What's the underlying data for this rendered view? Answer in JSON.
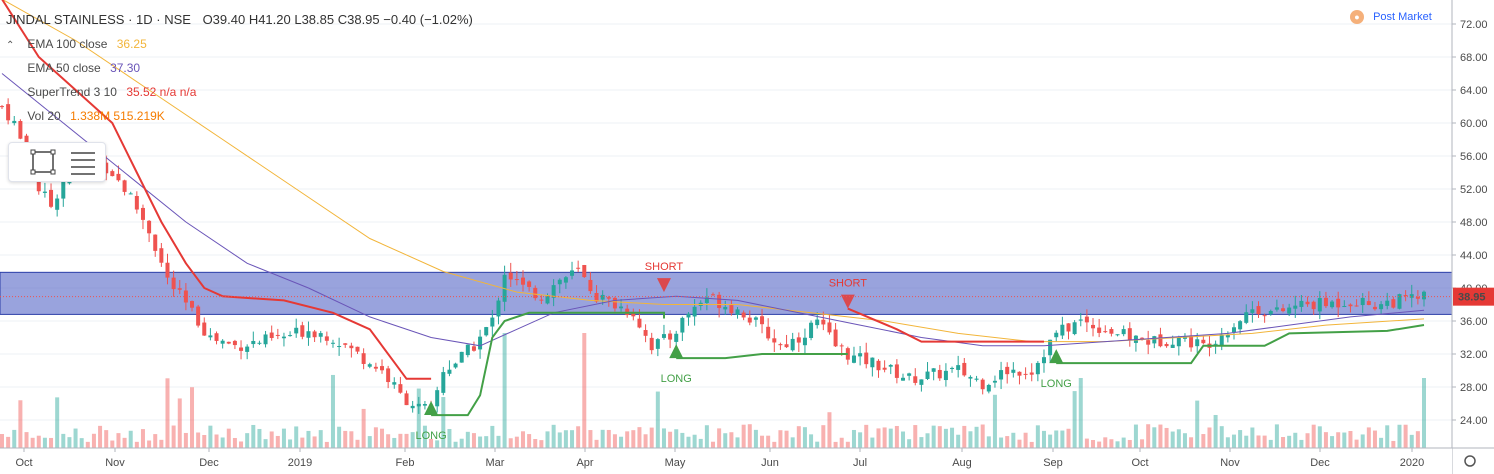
{
  "header": {
    "title": "JINDAL STAINLESS · 1D · NSE",
    "ohlc": "O39.40  H41.20  L38.85  C38.95  −0.40 (−1.02%)",
    "post_market": "Post Market"
  },
  "legend": {
    "ema100": {
      "label": "EMA 100 close",
      "value": "36.25",
      "color": "#f2b53a"
    },
    "ema50": {
      "label": "EMA 50 close",
      "value": "37.30",
      "color": "#6a55b8"
    },
    "supertrend": {
      "label": "SuperTrend 3 10",
      "value": "35.52  n/a  n/a",
      "color": "#e53935"
    },
    "volume": {
      "label": "Vol 20",
      "value": "1.338M  515.219K",
      "color": "#f57c00"
    }
  },
  "price_label": {
    "value": "38.95",
    "color": "#e53935"
  },
  "colors": {
    "up": "#26a69a",
    "down": "#ef5350",
    "zone": "#5a6bc8",
    "st_long": "#43a047",
    "st_short": "#e53935"
  },
  "chart_data": {
    "type": "candlestick",
    "y_ticks": [
      "72.00",
      "68.00",
      "64.00",
      "60.00",
      "56.00",
      "52.00",
      "48.00",
      "44.00",
      "40.00",
      "36.00",
      "32.00",
      "28.00",
      "24.00"
    ],
    "x_ticks": [
      "Oct",
      "Nov",
      "Dec",
      "2019",
      "Feb",
      "Mar",
      "Apr",
      "May",
      "Jun",
      "Jul",
      "Aug",
      "Sep",
      "Oct",
      "Nov",
      "Dec",
      "2020"
    ],
    "ylim": [
      20.9,
      74.4
    ],
    "zone": {
      "low": 36.8,
      "high": 41.9
    },
    "close_path": [
      [
        0,
        62
      ],
      [
        2,
        60
      ],
      [
        4,
        56
      ],
      [
        6,
        52
      ],
      [
        8,
        50
      ],
      [
        10,
        53
      ],
      [
        13,
        57
      ],
      [
        15,
        56
      ],
      [
        18,
        54
      ],
      [
        21,
        51
      ],
      [
        24,
        47
      ],
      [
        27,
        41
      ],
      [
        30,
        38
      ],
      [
        34,
        34
      ],
      [
        38,
        33
      ],
      [
        42,
        33.5
      ],
      [
        46,
        34
      ],
      [
        50,
        35
      ],
      [
        54,
        34
      ],
      [
        58,
        32
      ],
      [
        62,
        30
      ],
      [
        65,
        27
      ],
      [
        68,
        25.5
      ],
      [
        70,
        25
      ],
      [
        72,
        30
      ],
      [
        74,
        31
      ],
      [
        77,
        33
      ],
      [
        80,
        36
      ],
      [
        82,
        42
      ],
      [
        85,
        40
      ],
      [
        88,
        39
      ],
      [
        91,
        41
      ],
      [
        94,
        42
      ],
      [
        97,
        39
      ],
      [
        100,
        38
      ],
      [
        103,
        37
      ],
      [
        106,
        33
      ],
      [
        109,
        34
      ],
      [
        112,
        37
      ],
      [
        115,
        39
      ],
      [
        118,
        38
      ],
      [
        121,
        37
      ],
      [
        124,
        35
      ],
      [
        127,
        33
      ],
      [
        130,
        34
      ],
      [
        133,
        36
      ],
      [
        136,
        33
      ],
      [
        139,
        31.5
      ],
      [
        142,
        31
      ],
      [
        145,
        30
      ],
      [
        148,
        29
      ],
      [
        152,
        29.5
      ],
      [
        156,
        30
      ],
      [
        160,
        28.5
      ],
      [
        164,
        30
      ],
      [
        168,
        30
      ],
      [
        172,
        34.5
      ],
      [
        176,
        36
      ],
      [
        180,
        35
      ],
      [
        184,
        34
      ],
      [
        188,
        33.5
      ],
      [
        192,
        34
      ],
      [
        196,
        33
      ],
      [
        200,
        35
      ],
      [
        204,
        37.5
      ],
      [
        208,
        37
      ],
      [
        212,
        38
      ],
      [
        216,
        38
      ],
      [
        220,
        38.5
      ],
      [
        224,
        38
      ],
      [
        228,
        38.5
      ],
      [
        232,
        38.95
      ]
    ],
    "ema50": [
      [
        0,
        66
      ],
      [
        10,
        60
      ],
      [
        20,
        54
      ],
      [
        30,
        48
      ],
      [
        40,
        43
      ],
      [
        50,
        40
      ],
      [
        60,
        36.5
      ],
      [
        70,
        34
      ],
      [
        78,
        33
      ],
      [
        84,
        35
      ],
      [
        90,
        37
      ],
      [
        100,
        38.5
      ],
      [
        110,
        39
      ],
      [
        120,
        38.5
      ],
      [
        130,
        37
      ],
      [
        140,
        35.5
      ],
      [
        150,
        34
      ],
      [
        160,
        33
      ],
      [
        170,
        33
      ],
      [
        180,
        33.5
      ],
      [
        190,
        34
      ],
      [
        200,
        34.5
      ],
      [
        210,
        35.5
      ],
      [
        220,
        36.5
      ],
      [
        232,
        37.3
      ]
    ],
    "ema100": [
      [
        0,
        75
      ],
      [
        12,
        70
      ],
      [
        24,
        64
      ],
      [
        36,
        58
      ],
      [
        48,
        52
      ],
      [
        60,
        46
      ],
      [
        72,
        42
      ],
      [
        84,
        39.5
      ],
      [
        96,
        38.5
      ],
      [
        108,
        38
      ],
      [
        120,
        38
      ],
      [
        132,
        37
      ],
      [
        144,
        36
      ],
      [
        156,
        34.5
      ],
      [
        168,
        33.5
      ],
      [
        180,
        33.5
      ],
      [
        192,
        34
      ],
      [
        204,
        34.5
      ],
      [
        216,
        35.5
      ],
      [
        232,
        36.25
      ]
    ],
    "supertrend": {
      "short_segments": [
        [
          [
            0,
            75
          ],
          [
            6,
            68
          ],
          [
            12,
            64
          ],
          [
            18,
            60
          ],
          [
            22,
            54
          ],
          [
            26,
            48
          ],
          [
            30,
            43
          ],
          [
            33,
            40
          ],
          [
            36,
            39
          ],
          [
            46,
            38.5
          ],
          [
            54,
            37
          ],
          [
            60,
            35
          ],
          [
            64,
            31
          ],
          [
            66,
            29
          ],
          [
            70,
            29
          ]
        ],
        [
          [
            138,
            37.5
          ],
          [
            146,
            35
          ],
          [
            150,
            33.5
          ],
          [
            170,
            33.5
          ]
        ]
      ],
      "long_segments": [
        [
          [
            70,
            24.6
          ],
          [
            76,
            24.6
          ],
          [
            78,
            27
          ],
          [
            80,
            34
          ],
          [
            82,
            36
          ],
          [
            86,
            37
          ],
          [
            100,
            37
          ],
          [
            108,
            37
          ],
          [
            108,
            36.3
          ]
        ],
        [
          [
            110,
            31.5
          ],
          [
            118,
            31.5
          ],
          [
            124,
            32
          ],
          [
            138,
            32
          ]
        ],
        [
          [
            172,
            30.9
          ],
          [
            194,
            30.9
          ],
          [
            196,
            33
          ],
          [
            206,
            33
          ],
          [
            210,
            34.5
          ],
          [
            226,
            34.8
          ],
          [
            232,
            35.52
          ]
        ]
      ]
    },
    "signals": [
      {
        "label": "LONG",
        "index": 70,
        "price": 24.6,
        "dir": "long"
      },
      {
        "label": "SHORT",
        "index": 108,
        "price": 39.5,
        "dir": "short"
      },
      {
        "label": "LONG",
        "index": 110,
        "price": 31.5,
        "dir": "long"
      },
      {
        "label": "SHORT",
        "index": 138,
        "price": 37.5,
        "dir": "short"
      },
      {
        "label": "LONG",
        "index": 172,
        "price": 30.9,
        "dir": "long"
      }
    ]
  }
}
